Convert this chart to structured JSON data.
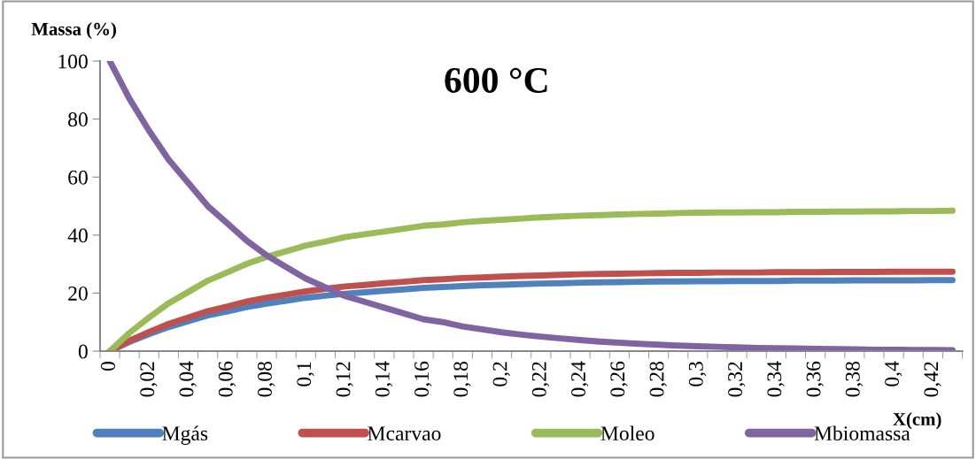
{
  "chart_data": {
    "type": "line",
    "title": "600 °C",
    "ylabel": "Massa (%)",
    "xlabel": "X(cm)",
    "categories": [
      "0",
      null,
      "0,02",
      null,
      "0,04",
      null,
      "0,06",
      null,
      "0,08",
      null,
      "0,1",
      null,
      "0,12",
      null,
      "0,14",
      null,
      "0,16",
      null,
      "0,18",
      null,
      "0,2",
      null,
      "0,22",
      null,
      "0,24",
      null,
      "0,26",
      null,
      "0,28",
      null,
      "0,3",
      null,
      "0,32",
      null,
      "0,34",
      null,
      "0,36",
      null,
      "0,38",
      null,
      "0,4",
      null,
      "0,42",
      null
    ],
    "ylim": [
      0,
      100
    ],
    "yticks": [
      0,
      20,
      40,
      60,
      80,
      100
    ],
    "grid": false,
    "legend": "bottom",
    "marker": "none",
    "line_style": "solid",
    "series": [
      {
        "name": "Mgás",
        "color": "#4f81bd",
        "values": [
          0,
          3.2,
          5.9,
          8.3,
          10.3,
          12.3,
          13.7,
          15.2,
          16.4,
          17.4,
          18.4,
          19.1,
          19.8,
          20.3,
          20.8,
          21.3,
          21.8,
          22.1,
          22.4,
          22.7,
          22.9,
          23.1,
          23.3,
          23.4,
          23.6,
          23.7,
          23.8,
          23.9,
          24.0,
          24.0,
          24.1,
          24.1,
          24.2,
          24.2,
          24.2,
          24.3,
          24.3,
          24.3,
          24.4,
          24.4,
          24.4,
          24.4,
          24.5,
          24.5
        ]
      },
      {
        "name": "Mcarvao",
        "color": "#c0504d",
        "values": [
          0,
          3.6,
          6.6,
          9.4,
          11.6,
          13.8,
          15.4,
          17.1,
          18.4,
          19.5,
          20.6,
          21.5,
          22.3,
          22.8,
          23.4,
          23.9,
          24.5,
          24.8,
          25.2,
          25.4,
          25.7,
          25.9,
          26.1,
          26.3,
          26.5,
          26.6,
          26.7,
          26.8,
          26.9,
          27.0,
          27.0,
          27.1,
          27.1,
          27.1,
          27.2,
          27.2,
          27.2,
          27.3,
          27.3,
          27.3,
          27.4,
          27.4,
          27.4,
          27.4
        ]
      },
      {
        "name": "Moleo",
        "color": "#9bbb59",
        "values": [
          0,
          6.3,
          11.6,
          16.5,
          20.4,
          24.3,
          27.2,
          30.1,
          32.5,
          34.4,
          36.4,
          37.8,
          39.3,
          40.3,
          41.2,
          42.2,
          43.2,
          43.7,
          44.4,
          44.9,
          45.3,
          45.7,
          46.1,
          46.4,
          46.7,
          46.9,
          47.1,
          47.3,
          47.4,
          47.6,
          47.7,
          47.8,
          47.8,
          47.9,
          47.9,
          48.0,
          48.0,
          48.1,
          48.1,
          48.2,
          48.2,
          48.3,
          48.3,
          48.4
        ]
      },
      {
        "name": "Mbiomassa",
        "color": "#8064a2",
        "values": [
          100,
          87,
          76,
          66,
          58,
          50,
          44,
          38,
          33,
          29,
          25,
          22,
          19,
          17,
          15,
          13,
          11,
          10,
          8.5,
          7.5,
          6.5,
          5.7,
          5.0,
          4.4,
          3.8,
          3.3,
          2.9,
          2.5,
          2.2,
          1.9,
          1.7,
          1.5,
          1.3,
          1.1,
          1.0,
          0.9,
          0.8,
          0.7,
          0.6,
          0.5,
          0.5,
          0.4,
          0.4,
          0.3
        ]
      }
    ]
  }
}
